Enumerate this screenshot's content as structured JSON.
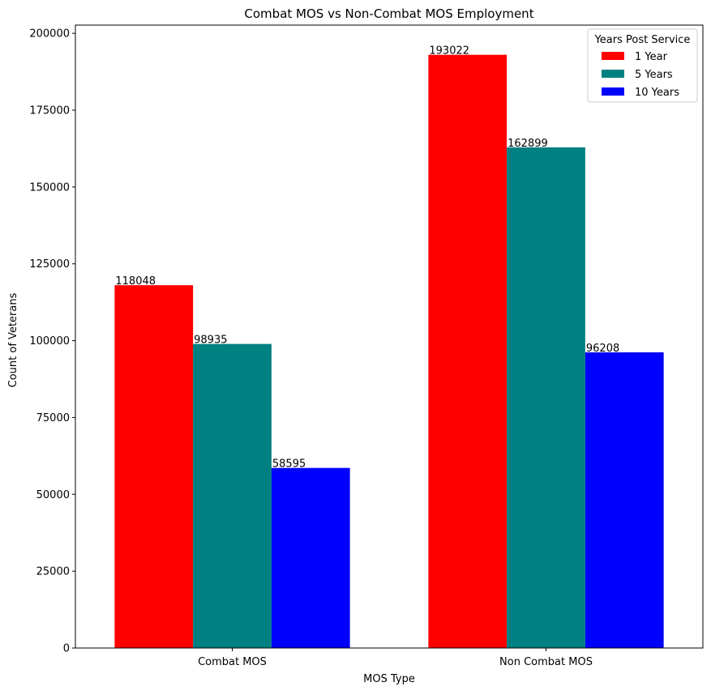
{
  "chart_data": {
    "type": "bar",
    "title": "Combat MOS vs Non-Combat MOS Employment",
    "xlabel": "MOS Type",
    "ylabel": "Count of Veterans",
    "categories": [
      "Combat MOS",
      "Non Combat MOS"
    ],
    "series": [
      {
        "name": "1 Year",
        "color": "#ff0000",
        "values": [
          118048,
          193022
        ]
      },
      {
        "name": "5 Years",
        "color": "#008080",
        "values": [
          98935,
          162899
        ]
      },
      {
        "name": "10 Years",
        "color": "#0000ff",
        "values": [
          58595,
          96208
        ]
      }
    ],
    "ylim": [
      0,
      202673
    ],
    "yticks": [
      0,
      25000,
      50000,
      75000,
      100000,
      125000,
      150000,
      175000,
      200000
    ],
    "grid": false,
    "legend": {
      "title": "Years Post Service",
      "position": "top-right"
    }
  }
}
